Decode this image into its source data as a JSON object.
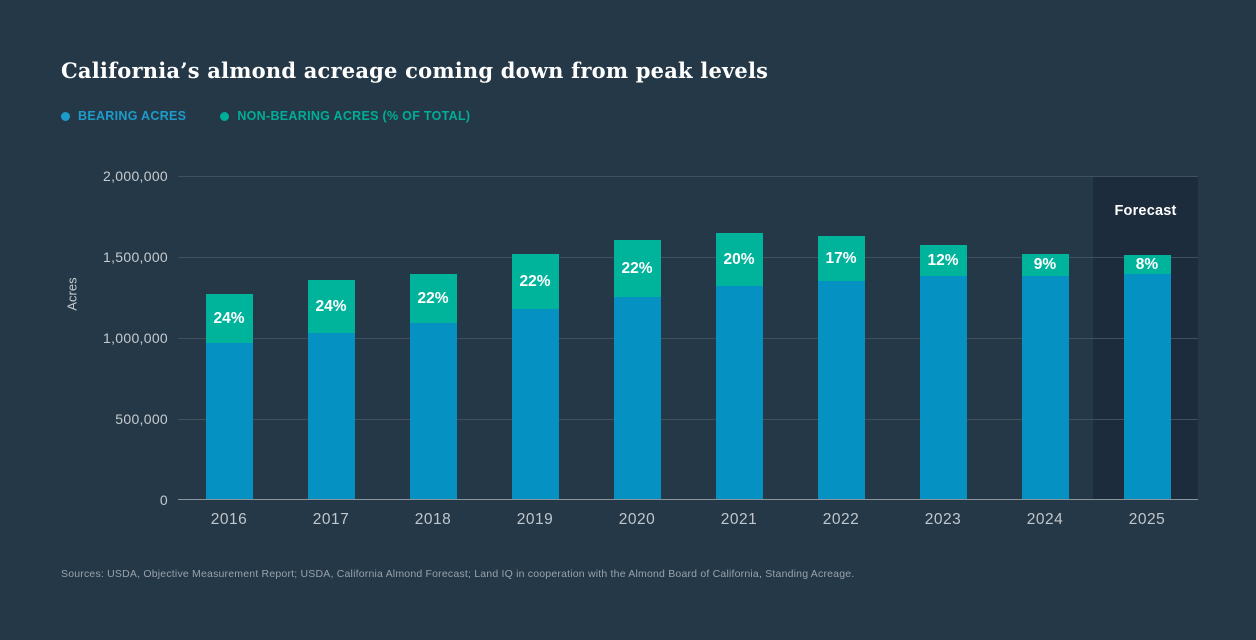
{
  "title": "California’s almond acreage coming down from peak levels",
  "legend": {
    "items": [
      {
        "label": "BEARING ACRES",
        "color": "#1d9ccb"
      },
      {
        "label": "NON-BEARING ACRES (% OF TOTAL)",
        "color": "#00ae97"
      }
    ]
  },
  "chart_data": {
    "type": "bar",
    "stacked": true,
    "categories": [
      "2016",
      "2017",
      "2018",
      "2019",
      "2020",
      "2021",
      "2022",
      "2023",
      "2024",
      "2025"
    ],
    "series": [
      {
        "name": "Bearing acres",
        "color": "#0591c1",
        "values": [
          970000,
          1030000,
          1090000,
          1180000,
          1250000,
          1320000,
          1350000,
          1380000,
          1385000,
          1395000
        ]
      },
      {
        "name": "Non-bearing acres",
        "color": "#00b39b",
        "values": [
          305000,
          330000,
          300000,
          340000,
          350000,
          330000,
          280000,
          190000,
          135000,
          120000
        ]
      }
    ],
    "totals": [
      1275000,
      1360000,
      1390000,
      1520000,
      1600000,
      1650000,
      1630000,
      1570000,
      1520000,
      1515000
    ],
    "bar_labels": [
      "24%",
      "24%",
      "22%",
      "22%",
      "22%",
      "20%",
      "17%",
      "12%",
      "9%",
      "8%"
    ],
    "xlabel": "",
    "ylabel": "Acres",
    "ylim": [
      0,
      2000000
    ],
    "yticks": [
      "2,000,000",
      "1,500,000",
      "1,000,000",
      "500,000",
      "0"
    ],
    "grid": "horizontal",
    "legend_position": "top-left",
    "forecast": {
      "label": "Forecast",
      "category": "2025",
      "band_color": "#1d2c3c"
    }
  },
  "source": "Sources: USDA, Objective Measurement Report; USDA, California Almond Forecast; Land IQ in cooperation with the Almond Board of California, Standing Acreage.",
  "colors": {
    "background": "#253847",
    "bar_label_text": "#ffffff",
    "tick_text": "#c6cbd0",
    "gridline": "#41505d",
    "axis_line": "#8b959d",
    "source_text": "#98a2ab",
    "title_text": "#ffffff"
  }
}
